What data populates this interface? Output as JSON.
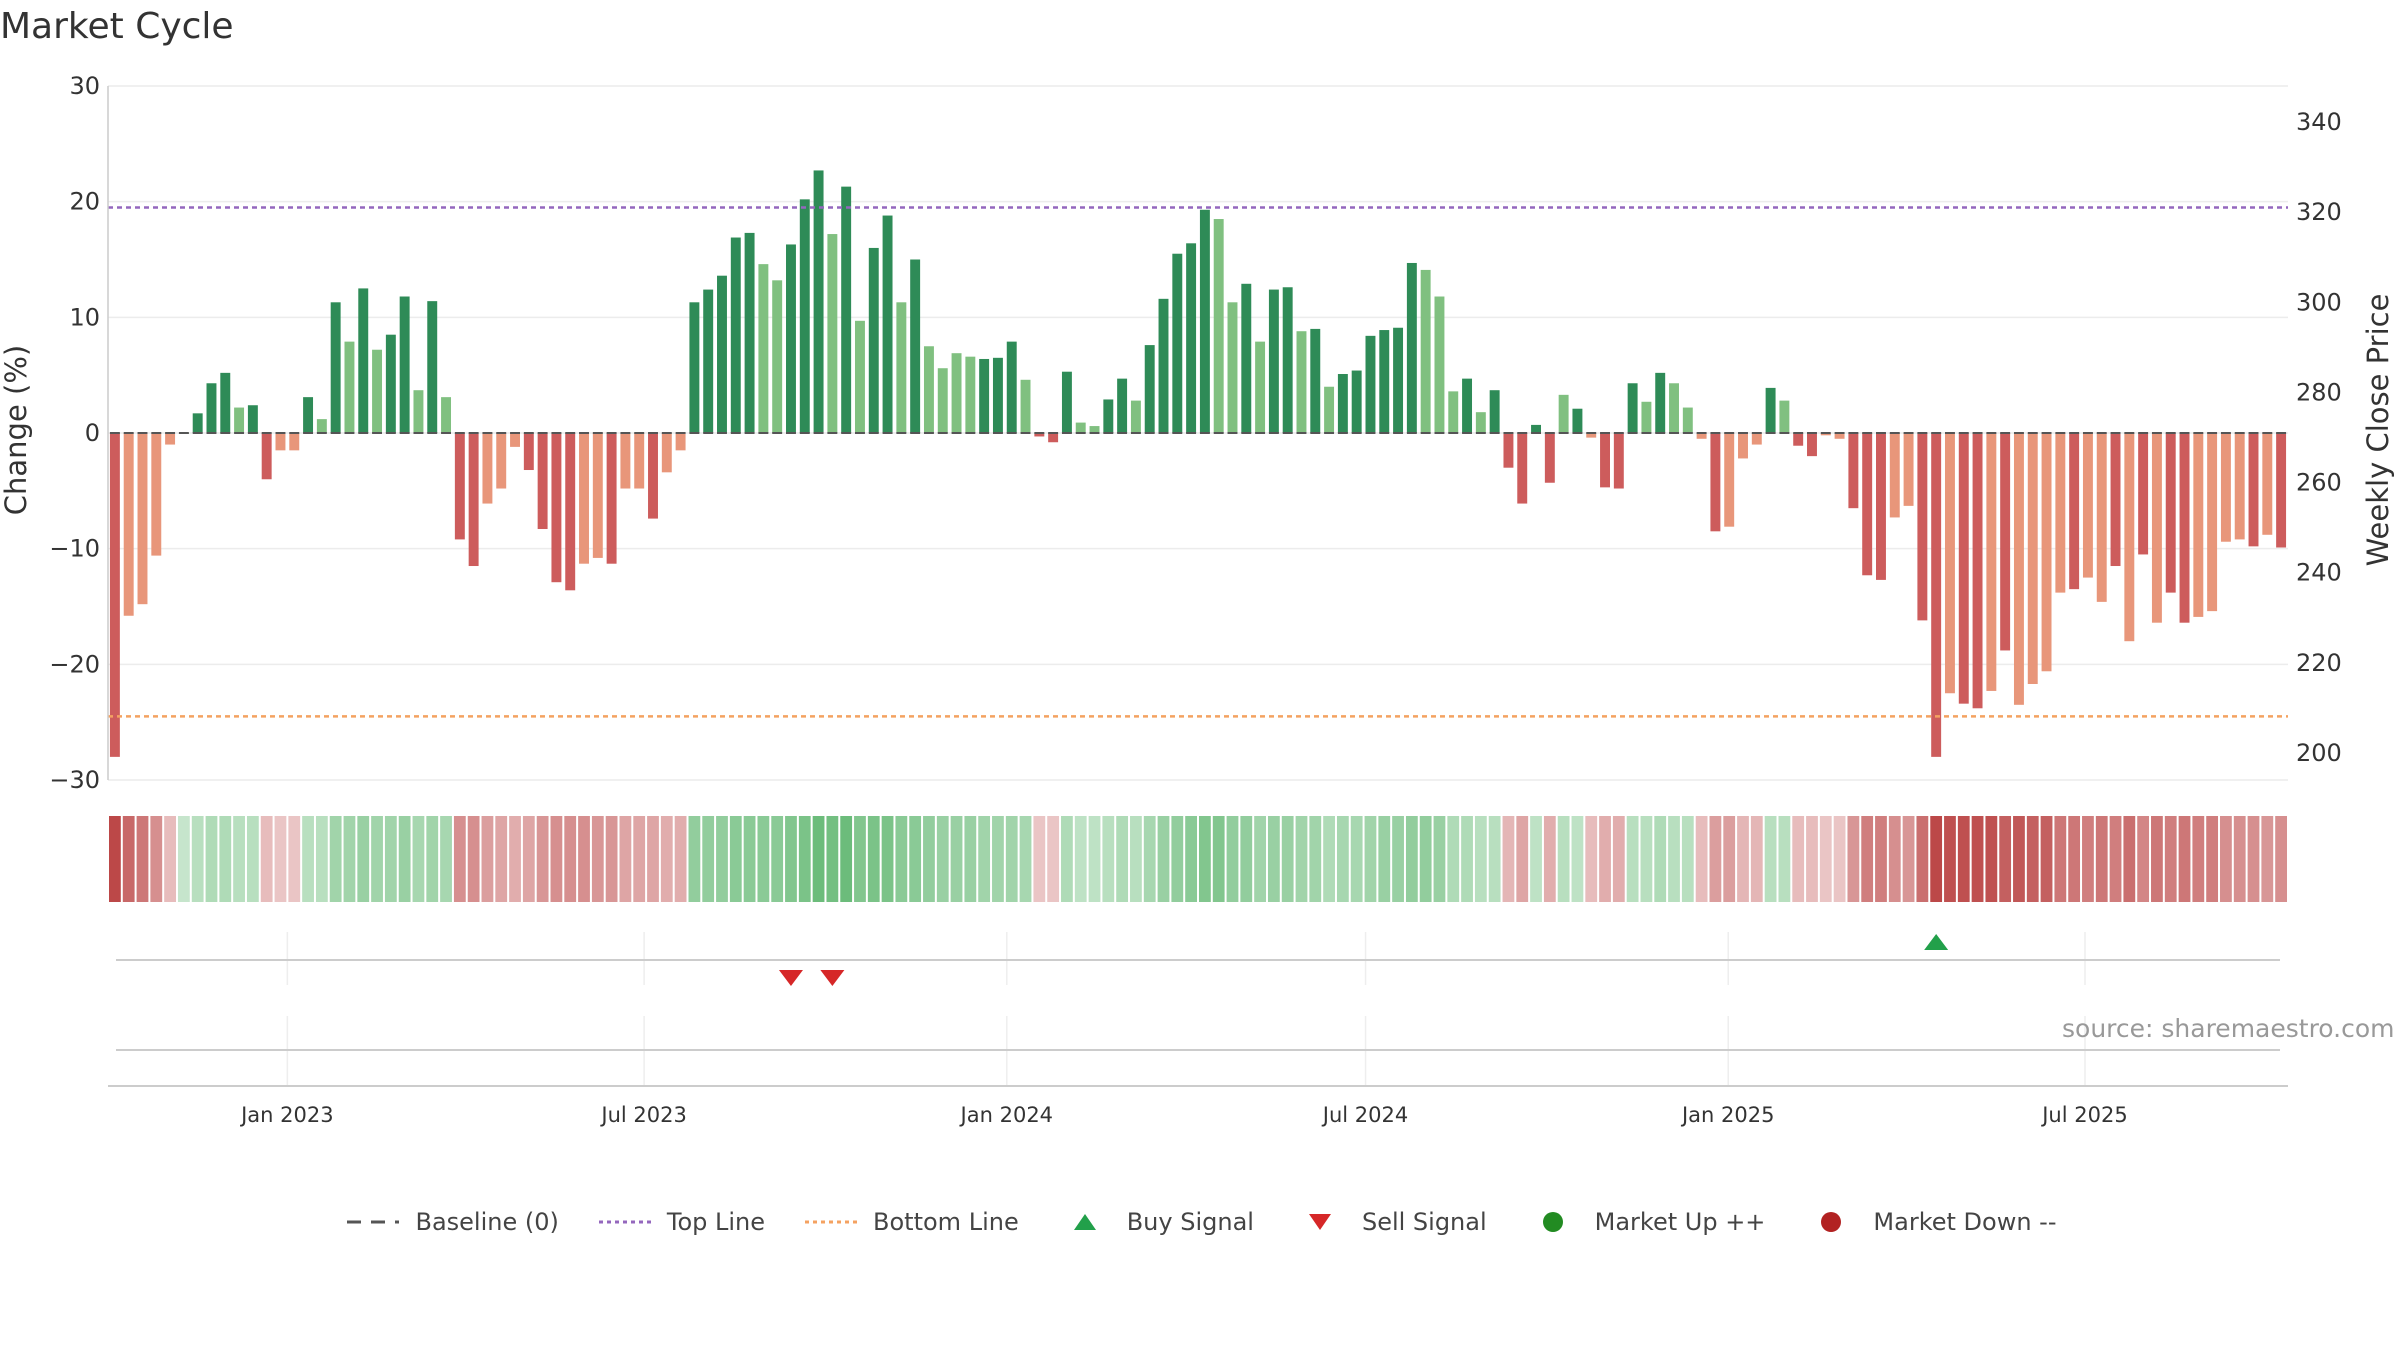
{
  "title": "Market Cycle",
  "source": "source: sharemaestro.com",
  "colors": {
    "strong_up": "#2e8b57",
    "weak_up": "#80c080",
    "strong_down": "#cd5c5c",
    "weak_down": "#e8967a",
    "top_line": "#9467bd",
    "bottom_line": "#f4a261",
    "baseline": "#555555",
    "buy": "#22a04a",
    "sell": "#d62728",
    "market_up": "#228b22",
    "market_down": "#b22222"
  },
  "chart_data": {
    "type": "bar",
    "title": "Market Cycle",
    "ylabel": "Change (%)",
    "y2label": "Weekly Close Price",
    "ylim": [
      -30,
      30
    ],
    "yticks": [
      30,
      20,
      10,
      0,
      -10,
      -20,
      -30
    ],
    "yticklabels": [
      "30",
      "20",
      "10",
      "0",
      "−10",
      "−20",
      "−30"
    ],
    "y2ticks": [
      340,
      320,
      300,
      280,
      260,
      240,
      220,
      200
    ],
    "y2lim": [
      194,
      348
    ],
    "x_start": "2022-10-02",
    "bar_interval_days": 7,
    "xticks": [
      {
        "label": "Jan 2023",
        "date": "2023-01-01"
      },
      {
        "label": "Jul 2023",
        "date": "2023-07-01"
      },
      {
        "label": "Jan 2024",
        "date": "2024-01-01"
      },
      {
        "label": "Jul 2024",
        "date": "2024-07-01"
      },
      {
        "label": "Jan 2025",
        "date": "2025-01-01"
      },
      {
        "label": "Jul 2025",
        "date": "2025-07-01"
      }
    ],
    "top_line": 19.5,
    "bottom_line": -24.5,
    "values": [
      -28,
      -15.8,
      -14.8,
      -10.6,
      -1,
      0,
      1.7,
      4.3,
      5.2,
      2.2,
      2.4,
      -4,
      -1.5,
      -1.5,
      3.1,
      1.2,
      11.3,
      7.9,
      12.5,
      7.2,
      8.5,
      11.8,
      3.7,
      11.4,
      3.1,
      -9.2,
      -11.5,
      -6.1,
      -4.8,
      -1.2,
      -3.2,
      -8.3,
      -12.9,
      -13.6,
      -11.3,
      -10.8,
      -11.3,
      -4.8,
      -4.8,
      -7.4,
      -3.4,
      -1.5,
      11.3,
      12.4,
      13.6,
      16.9,
      17.3,
      14.6,
      13.2,
      16.3,
      20.2,
      22.7,
      17.2,
      21.3,
      9.7,
      16.0,
      18.8,
      11.3,
      15.0,
      7.5,
      5.6,
      6.9,
      6.6,
      6.4,
      6.5,
      7.9,
      4.6,
      -0.3,
      -0.8,
      5.3,
      0.9,
      0.6,
      2.9,
      4.7,
      2.8,
      7.6,
      11.6,
      15.5,
      16.4,
      19.3,
      18.5,
      11.3,
      12.9,
      7.9,
      12.4,
      12.6,
      8.8,
      9.0,
      4.0,
      5.1,
      5.4,
      8.4,
      8.9,
      9.1,
      14.7,
      14.1,
      11.8,
      3.6,
      4.7,
      1.8,
      3.7,
      -3.0,
      -6.1,
      0.7,
      -4.3,
      3.3,
      2.1,
      -0.4,
      -4.7,
      -4.8,
      4.3,
      2.7,
      5.2,
      4.3,
      2.2,
      -0.5,
      -8.5,
      -8.1,
      -2.2,
      -1.0,
      3.9,
      2.8,
      -1.1,
      -2.0,
      -0.2,
      -0.5,
      -6.5,
      -12.3,
      -12.7,
      -7.3,
      -6.3,
      -16.2,
      -28,
      -22.5,
      -23.4,
      -23.8,
      -22.3,
      -18.8,
      -23.5,
      -21.7,
      -20.6,
      -13.8,
      -13.5,
      -12.5,
      -14.6,
      -11.5,
      -18,
      -10.5,
      -16.4,
      -13.8,
      -16.4,
      -15.9,
      -15.4,
      -9.4,
      -9.2,
      -9.8,
      -8.8,
      -9.9
    ],
    "shades": [
      "s",
      "w",
      "w",
      "w",
      "w",
      "w",
      "s",
      "s",
      "s",
      "w",
      "s",
      "s",
      "w",
      "w",
      "s",
      "w",
      "s",
      "w",
      "s",
      "w",
      "s",
      "s",
      "w",
      "s",
      "w",
      "s",
      "s",
      "w",
      "w",
      "w",
      "s",
      "s",
      "s",
      "s",
      "w",
      "w",
      "s",
      "w",
      "w",
      "s",
      "w",
      "w",
      "s",
      "s",
      "s",
      "s",
      "s",
      "w",
      "w",
      "s",
      "s",
      "s",
      "w",
      "s",
      "w",
      "s",
      "s",
      "w",
      "s",
      "w",
      "w",
      "w",
      "w",
      "s",
      "s",
      "s",
      "w",
      "s",
      "s",
      "s",
      "w",
      "w",
      "s",
      "s",
      "w",
      "s",
      "s",
      "s",
      "s",
      "s",
      "w",
      "w",
      "s",
      "w",
      "s",
      "s",
      "w",
      "s",
      "w",
      "s",
      "s",
      "s",
      "s",
      "s",
      "s",
      "w",
      "w",
      "w",
      "s",
      "w",
      "s",
      "s",
      "s",
      "s",
      "s",
      "w",
      "s",
      "w",
      "s",
      "s",
      "s",
      "w",
      "s",
      "w",
      "w",
      "w",
      "s",
      "w",
      "w",
      "w",
      "s",
      "w",
      "s",
      "s",
      "w",
      "w",
      "s",
      "s",
      "s",
      "w",
      "w",
      "s",
      "s",
      "w",
      "s",
      "s",
      "w",
      "s",
      "w",
      "w",
      "w",
      "w",
      "s",
      "w",
      "w",
      "s",
      "w",
      "s",
      "w",
      "s",
      "s",
      "w",
      "w",
      "w",
      "w",
      "s",
      "w",
      "s"
    ],
    "heat_strip": [
      -0.9,
      -0.7,
      -0.6,
      -0.45,
      -0.15,
      0.1,
      0.2,
      0.25,
      0.25,
      0.2,
      0.2,
      -0.15,
      -0.1,
      -0.1,
      0.2,
      0.2,
      0.35,
      0.35,
      0.4,
      0.35,
      0.35,
      0.4,
      0.3,
      0.35,
      0.3,
      -0.45,
      -0.45,
      -0.35,
      -0.3,
      -0.25,
      -0.3,
      -0.4,
      -0.45,
      -0.45,
      -0.45,
      -0.4,
      -0.4,
      -0.3,
      -0.3,
      -0.3,
      -0.25,
      -0.25,
      0.45,
      0.45,
      0.45,
      0.5,
      0.5,
      0.5,
      0.5,
      0.55,
      0.6,
      0.7,
      0.65,
      0.7,
      0.55,
      0.6,
      0.6,
      0.5,
      0.5,
      0.45,
      0.4,
      0.4,
      0.4,
      0.35,
      0.35,
      0.35,
      0.3,
      -0.1,
      -0.1,
      0.25,
      0.15,
      0.15,
      0.2,
      0.25,
      0.2,
      0.3,
      0.4,
      0.45,
      0.5,
      0.55,
      0.55,
      0.45,
      0.45,
      0.35,
      0.4,
      0.4,
      0.35,
      0.35,
      0.25,
      0.3,
      0.3,
      0.35,
      0.4,
      0.4,
      0.45,
      0.45,
      0.4,
      0.25,
      0.25,
      0.2,
      0.2,
      -0.2,
      -0.3,
      0.15,
      -0.25,
      0.2,
      0.15,
      -0.15,
      -0.25,
      -0.25,
      0.2,
      0.2,
      0.25,
      0.2,
      0.2,
      -0.15,
      -0.35,
      -0.35,
      -0.2,
      -0.2,
      0.2,
      0.2,
      -0.15,
      -0.15,
      -0.1,
      -0.1,
      -0.4,
      -0.55,
      -0.55,
      -0.45,
      -0.4,
      -0.65,
      -0.9,
      -0.85,
      -0.85,
      -0.85,
      -0.85,
      -0.75,
      -0.8,
      -0.75,
      -0.75,
      -0.6,
      -0.6,
      -0.55,
      -0.6,
      -0.55,
      -0.65,
      -0.5,
      -0.6,
      -0.55,
      -0.6,
      -0.55,
      -0.55,
      -0.45,
      -0.45,
      -0.45,
      -0.4,
      -0.45
    ],
    "signals": [
      {
        "type": "sell",
        "bar_index": 49
      },
      {
        "type": "sell",
        "bar_index": 52
      },
      {
        "type": "buy",
        "bar_index": 132
      }
    ],
    "legend": [
      {
        "label": "Baseline (0)",
        "kind": "dash-line",
        "color": "#555555"
      },
      {
        "label": "Top Line",
        "kind": "dotted-line",
        "color": "#9467bd"
      },
      {
        "label": "Bottom Line",
        "kind": "dotted-line",
        "color": "#f4a261"
      },
      {
        "label": "Buy Signal",
        "kind": "triangle-up",
        "color": "#22a04a"
      },
      {
        "label": "Sell Signal",
        "kind": "triangle-down",
        "color": "#d62728"
      },
      {
        "label": "Market Up ++",
        "kind": "circle",
        "color": "#228b22"
      },
      {
        "label": "Market Down --",
        "kind": "circle",
        "color": "#b22222"
      }
    ],
    "legend_position": "bottom-center"
  }
}
